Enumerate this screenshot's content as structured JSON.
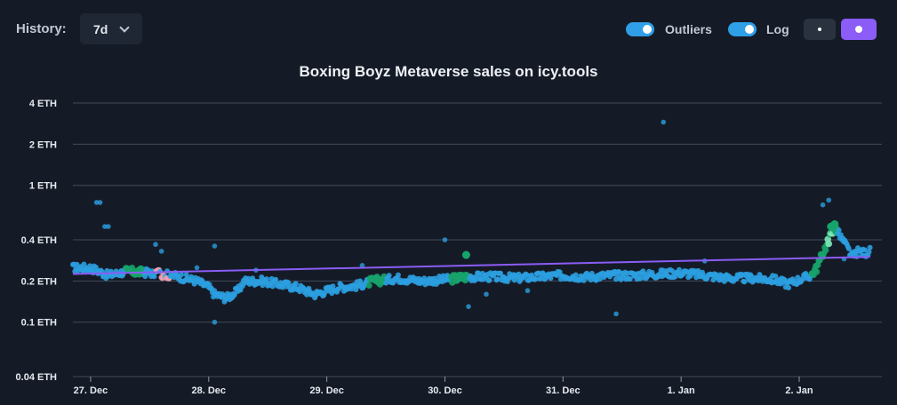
{
  "toolbar": {
    "history_label": "History:",
    "range_value": "7d",
    "outliers_label": "Outliers",
    "outliers_on": true,
    "log_label": "Log",
    "log_on": true,
    "toggle_color": "#2f9fe8",
    "mode_dark_color": "#2a3240",
    "mode_active_color": "#8b5cf6"
  },
  "chart_data": {
    "type": "scatter",
    "title": "Boxing Boyz Metaverse sales on icy.tools",
    "y_scale": "log",
    "y_ticks": [
      {
        "value": 4,
        "label": "4 ETH"
      },
      {
        "value": 2,
        "label": "2 ETH"
      },
      {
        "value": 1,
        "label": "1 ETH"
      },
      {
        "value": 0.4,
        "label": "0.4 ETH"
      },
      {
        "value": 0.2,
        "label": "0.2 ETH"
      },
      {
        "value": 0.1,
        "label": "0.1 ETH"
      },
      {
        "value": 0.04,
        "label": "0.04 ETH"
      }
    ],
    "ylim": [
      0.04,
      4
    ],
    "x_ticks": [
      "27. Dec",
      "28. Dec",
      "29. Dec",
      "30. Dec",
      "31. Dec",
      "1. Jan",
      "2. Jan"
    ],
    "xlim": [
      -0.15,
      6.7
    ],
    "grid": true,
    "colors": {
      "regular": "#2b9ee0",
      "green": "#17a36c",
      "light_green": "#7ee8b8",
      "pink": "#f0a0b0",
      "trend": "#8b5cf6"
    },
    "trend_line": {
      "start": [
        -0.15,
        0.225
      ],
      "end": [
        6.6,
        0.3
      ]
    },
    "price_path": [
      [
        -0.15,
        0.25
      ],
      [
        0.0,
        0.25
      ],
      [
        0.15,
        0.22
      ],
      [
        0.3,
        0.235
      ],
      [
        0.5,
        0.23
      ],
      [
        0.7,
        0.22
      ],
      [
        0.8,
        0.21
      ],
      [
        0.9,
        0.2
      ],
      [
        1.0,
        0.18
      ],
      [
        1.05,
        0.16
      ],
      [
        1.15,
        0.15
      ],
      [
        1.25,
        0.17
      ],
      [
        1.3,
        0.2
      ],
      [
        1.45,
        0.2
      ],
      [
        1.6,
        0.19
      ],
      [
        1.75,
        0.18
      ],
      [
        1.9,
        0.16
      ],
      [
        2.0,
        0.17
      ],
      [
        2.1,
        0.18
      ],
      [
        2.25,
        0.185
      ],
      [
        2.4,
        0.2
      ],
      [
        2.6,
        0.21
      ],
      [
        2.8,
        0.2
      ],
      [
        3.0,
        0.205
      ],
      [
        3.2,
        0.215
      ],
      [
        3.4,
        0.215
      ],
      [
        3.6,
        0.21
      ],
      [
        3.8,
        0.215
      ],
      [
        4.0,
        0.22
      ],
      [
        4.2,
        0.215
      ],
      [
        4.4,
        0.22
      ],
      [
        4.6,
        0.22
      ],
      [
        4.8,
        0.225
      ],
      [
        5.0,
        0.23
      ],
      [
        5.2,
        0.22
      ],
      [
        5.4,
        0.21
      ],
      [
        5.6,
        0.21
      ],
      [
        5.8,
        0.205
      ],
      [
        5.9,
        0.19
      ],
      [
        6.0,
        0.205
      ],
      [
        6.1,
        0.22
      ],
      [
        6.15,
        0.25
      ],
      [
        6.2,
        0.32
      ],
      [
        6.25,
        0.4
      ],
      [
        6.3,
        0.5
      ],
      [
        6.35,
        0.42
      ],
      [
        6.4,
        0.36
      ],
      [
        6.45,
        0.3
      ],
      [
        6.5,
        0.33
      ],
      [
        6.55,
        0.32
      ],
      [
        6.6,
        0.33
      ]
    ],
    "outliers": [
      [
        0.05,
        0.75
      ],
      [
        0.08,
        0.75
      ],
      [
        0.12,
        0.5
      ],
      [
        0.15,
        0.5
      ],
      [
        0.55,
        0.37
      ],
      [
        0.6,
        0.33
      ],
      [
        1.05,
        0.36
      ],
      [
        0.9,
        0.25
      ],
      [
        1.4,
        0.24
      ],
      [
        2.3,
        0.26
      ],
      [
        3.0,
        0.4
      ],
      [
        3.2,
        0.13
      ],
      [
        3.35,
        0.16
      ],
      [
        3.7,
        0.17
      ],
      [
        4.45,
        0.115
      ],
      [
        5.2,
        0.28
      ],
      [
        4.85,
        2.9
      ],
      [
        1.05,
        0.1
      ],
      [
        6.25,
        0.78
      ],
      [
        6.2,
        0.72
      ],
      [
        6.38,
        0.29
      ]
    ],
    "green_segments": [
      [
        0.3,
        0.45
      ],
      [
        2.35,
        2.5
      ],
      [
        3.05,
        3.2
      ],
      [
        6.1,
        6.32
      ]
    ],
    "green_big": [
      [
        3.18,
        0.31
      ],
      [
        6.27,
        0.5
      ],
      [
        6.3,
        0.52
      ]
    ],
    "pink_segment": [
      0.52,
      0.68
    ]
  }
}
